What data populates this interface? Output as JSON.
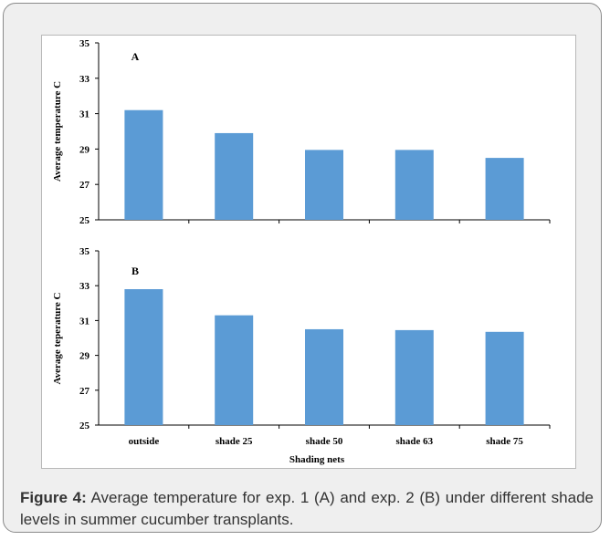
{
  "figure": {
    "label": "Figure 4:",
    "caption": " Average temperature for exp. 1 (A) and exp. 2 (B) under different shade levels in summer cucumber transplants."
  },
  "chart_data": [
    {
      "type": "bar",
      "panel": "A",
      "categories": [
        "outside",
        "shade 25",
        "shade 50",
        "shade 63",
        "shade 75"
      ],
      "values": [
        31.2,
        29.9,
        28.95,
        28.95,
        28.5
      ],
      "ylabel": "Average temperature C",
      "xlabel": "",
      "ylim": [
        25,
        35
      ],
      "yticks": [
        25,
        27,
        29,
        31,
        33,
        35
      ],
      "color": "#5b9bd5",
      "grid": false
    },
    {
      "type": "bar",
      "panel": "B",
      "categories": [
        "outside",
        "shade 25",
        "shade 50",
        "shade 63",
        "shade 75"
      ],
      "values": [
        32.8,
        31.3,
        30.5,
        30.45,
        30.35
      ],
      "ylabel": "Average teperature C",
      "xlabel": "Shading nets",
      "ylim": [
        25,
        35
      ],
      "yticks": [
        25,
        27,
        29,
        31,
        33,
        35
      ],
      "color": "#5b9bd5",
      "grid": false
    }
  ]
}
